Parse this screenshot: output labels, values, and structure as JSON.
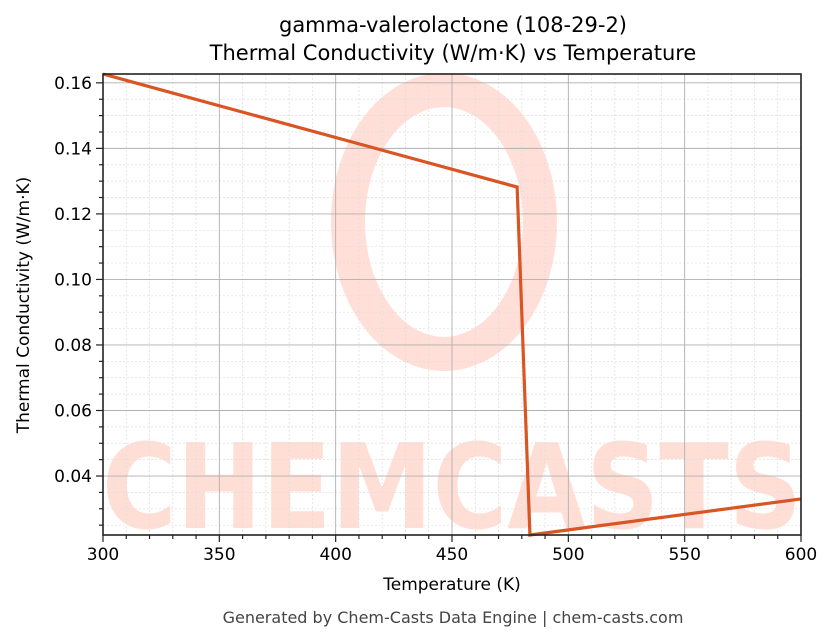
{
  "chart_data": {
    "type": "line",
    "title": "gamma-valerolactone (108-29-2)",
    "subtitle": "Thermal Conductivity (W/m·K) vs Temperature",
    "xlabel": "Temperature (K)",
    "ylabel": "Thermal Conductivity (W/m·K)",
    "xlim": [
      300,
      600
    ],
    "ylim": [
      0.022,
      0.1627
    ],
    "xticks": [
      300,
      350,
      400,
      450,
      500,
      550,
      600
    ],
    "yticks": [
      0.04,
      0.06,
      0.08,
      0.1,
      0.12,
      0.14,
      0.16
    ],
    "ytick_labels": [
      "0.04",
      "0.06",
      "0.08",
      "0.10",
      "0.12",
      "0.14",
      "0.16"
    ],
    "grid": true,
    "minor_grid": true,
    "legend": null,
    "series": [
      {
        "name": "Thermal Conductivity",
        "color": "#d95523",
        "x": [
          300,
          478,
          483.5,
          600
        ],
        "y": [
          0.1627,
          0.1282,
          0.022,
          0.033
        ]
      }
    ],
    "watermark": "CHEMCASTS"
  },
  "header": {
    "title": "gamma-valerolactone (108-29-2)",
    "subtitle": "Thermal Conductivity (W/m·K) vs Temperature"
  },
  "axes": {
    "xlabel": "Temperature (K)",
    "ylabel": "Thermal Conductivity (W/m·K)"
  },
  "footer": {
    "text": "Generated by Chem-Casts Data Engine | chem-casts.com"
  },
  "colors": {
    "line": "#d95523",
    "watermark": "#ffd9d0",
    "grid_major": "#b0b0b0",
    "grid_minor": "#dddddd"
  }
}
